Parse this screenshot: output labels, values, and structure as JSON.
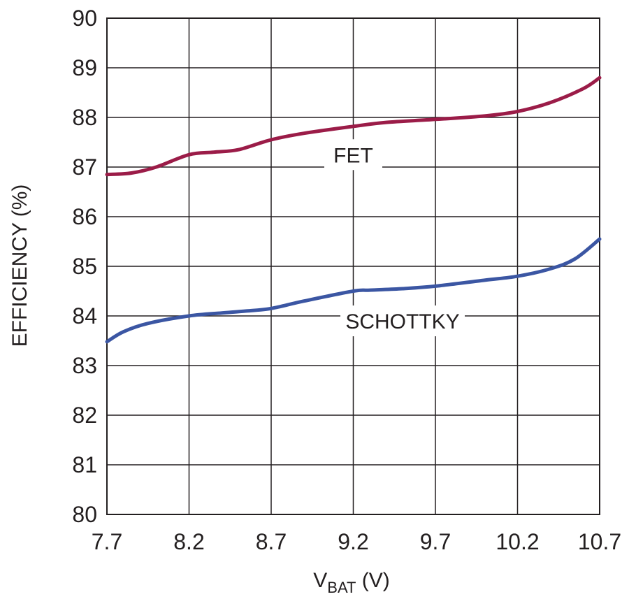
{
  "chart_data": {
    "type": "line",
    "title": "",
    "xlabel_main": "V",
    "xlabel_sub": "BAT",
    "xlabel_unit": " (V)",
    "ylabel": "EFFICIENCY (%)",
    "xlim": [
      7.7,
      10.7
    ],
    "ylim": [
      80,
      90
    ],
    "xticks": [
      "7.7",
      "8.2",
      "8.7",
      "9.2",
      "9.7",
      "10.2",
      "10.7"
    ],
    "yticks": [
      "80",
      "81",
      "82",
      "83",
      "84",
      "85",
      "86",
      "87",
      "88",
      "89",
      "90"
    ],
    "grid": true,
    "series": [
      {
        "name": "FET",
        "color": "#9b1c48",
        "x": [
          7.7,
          7.85,
          8.0,
          8.2,
          8.35,
          8.5,
          8.7,
          8.9,
          9.2,
          9.4,
          9.7,
          10.0,
          10.2,
          10.4,
          10.6,
          10.7
        ],
        "y": [
          86.85,
          86.88,
          87.0,
          87.25,
          87.3,
          87.35,
          87.55,
          87.68,
          87.82,
          87.9,
          87.96,
          88.03,
          88.12,
          88.3,
          88.58,
          88.8
        ]
      },
      {
        "name": "SCHOTTKY",
        "color": "#3b56a3",
        "x": [
          7.7,
          7.8,
          7.95,
          8.2,
          8.4,
          8.55,
          8.7,
          8.9,
          9.2,
          9.3,
          9.5,
          9.7,
          10.0,
          10.2,
          10.4,
          10.55,
          10.7
        ],
        "y": [
          83.48,
          83.68,
          83.85,
          84.0,
          84.06,
          84.1,
          84.15,
          84.3,
          84.5,
          84.52,
          84.55,
          84.6,
          84.72,
          84.8,
          84.95,
          85.15,
          85.55
        ]
      }
    ],
    "annotations": [
      {
        "text": "FET",
        "x": 9.2,
        "y": 87.25
      },
      {
        "text": "SCHOTTKY",
        "x": 9.5,
        "y": 83.9
      }
    ]
  }
}
